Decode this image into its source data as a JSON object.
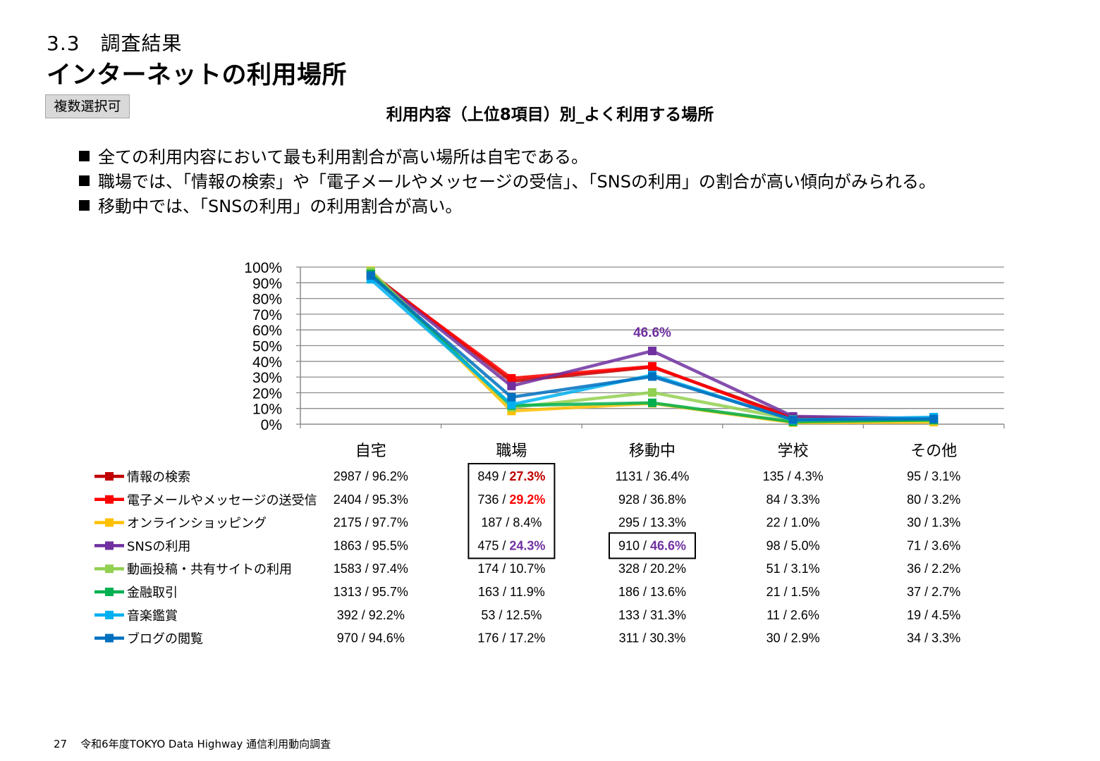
{
  "header": {
    "section": "3.3　調査結果",
    "title": "インターネットの利用場所",
    "badge": "複数選択可"
  },
  "bullets": [
    "全ての利用内容において最も利用割合が高い場所は自宅である。",
    "職場では、「情報の検索」や「電子メールやメッセージの受信」、「SNSの利用」の割合が高い傾向がみられる。",
    "移動中では、「SNSの利用」の利用割合が高い。"
  ],
  "footer": {
    "page_number": "27",
    "text": "令和6年度TOKYO Data Highway 通信利用動向調査"
  },
  "chart_data": {
    "type": "line",
    "title": "利用内容（上位8項目）別_よく利用する場所",
    "categories": [
      "自宅",
      "職場",
      "移動中",
      "学校",
      "その他"
    ],
    "ylim": [
      0,
      100
    ],
    "y_ticks": [
      0,
      10,
      20,
      30,
      40,
      50,
      60,
      70,
      80,
      90,
      100
    ],
    "y_tick_labels": [
      "0%",
      "10%",
      "20%",
      "30%",
      "40%",
      "50%",
      "60%",
      "70%",
      "80%",
      "90%",
      "100%"
    ],
    "grid": true,
    "legend": "table-below",
    "annotation": {
      "series": 3,
      "category": 2,
      "text": "46.6%",
      "color": "#7030a0"
    },
    "series": [
      {
        "name": "情報の検索",
        "color": "#c00000",
        "values": [
          96.2,
          27.3,
          36.4,
          4.3,
          3.1
        ],
        "labels": [
          "2987 / 96.2%",
          "849 / 27.3%",
          "1131 / 36.4%",
          "135 / 4.3%",
          "95 / 3.1%"
        ]
      },
      {
        "name": "電子メールやメッセージの送受信",
        "color": "#ff0000",
        "values": [
          95.3,
          29.2,
          36.8,
          3.3,
          3.2
        ],
        "labels": [
          "2404 / 95.3%",
          "736 / 29.2%",
          "928 / 36.8%",
          "84 / 3.3%",
          "80 / 3.2%"
        ]
      },
      {
        "name": "オンラインショッピング",
        "color": "#ffc000",
        "values": [
          97.7,
          8.4,
          13.3,
          1.0,
          1.3
        ],
        "labels": [
          "2175 / 97.7%",
          "187 / 8.4%",
          "295 / 13.3%",
          "22 / 1.0%",
          "30 / 1.3%"
        ]
      },
      {
        "name": "SNSの利用",
        "color": "#7030a0",
        "values": [
          95.5,
          24.3,
          46.6,
          5.0,
          3.6
        ],
        "labels": [
          "1863 / 95.5%",
          "475 / 24.3%",
          "910 / 46.6%",
          "98 / 5.0%",
          "71 / 3.6%"
        ]
      },
      {
        "name": "動画投稿・共有サイトの利用",
        "color": "#92d050",
        "values": [
          97.4,
          10.7,
          20.2,
          3.1,
          2.2
        ],
        "labels": [
          "1583 / 97.4%",
          "174 / 10.7%",
          "328 / 20.2%",
          "51 / 3.1%",
          "36 / 2.2%"
        ]
      },
      {
        "name": "金融取引",
        "color": "#00b050",
        "values": [
          95.7,
          11.9,
          13.6,
          1.5,
          2.7
        ],
        "labels": [
          "1313 / 95.7%",
          "163 / 11.9%",
          "186 / 13.6%",
          "21 / 1.5%",
          "37 / 2.7%"
        ]
      },
      {
        "name": "音楽鑑賞",
        "color": "#00b0f0",
        "values": [
          92.2,
          12.5,
          31.3,
          2.6,
          4.5
        ],
        "labels": [
          "392 / 92.2%",
          "53 / 12.5%",
          "133 / 31.3%",
          "11 / 2.6%",
          "19 / 4.5%"
        ]
      },
      {
        "name": "ブログの閲覧",
        "color": "#0070c0",
        "values": [
          94.6,
          17.2,
          30.3,
          2.9,
          3.3
        ],
        "labels": [
          "970 / 94.6%",
          "176 / 17.2%",
          "311 / 30.3%",
          "30 / 2.9%",
          "34 / 3.3%"
        ]
      }
    ],
    "highlights": [
      {
        "series": 0,
        "category": 1,
        "color": "#c00000"
      },
      {
        "series": 1,
        "category": 1,
        "color": "#ff0000"
      },
      {
        "series": 3,
        "category": 1,
        "color": "#7030a0"
      },
      {
        "series": 3,
        "category": 2,
        "color": "#7030a0"
      }
    ],
    "boxed_cells": [
      {
        "category": 1,
        "series_from": 0,
        "series_to": 3
      },
      {
        "category": 2,
        "series_from": 3,
        "series_to": 3
      }
    ]
  }
}
